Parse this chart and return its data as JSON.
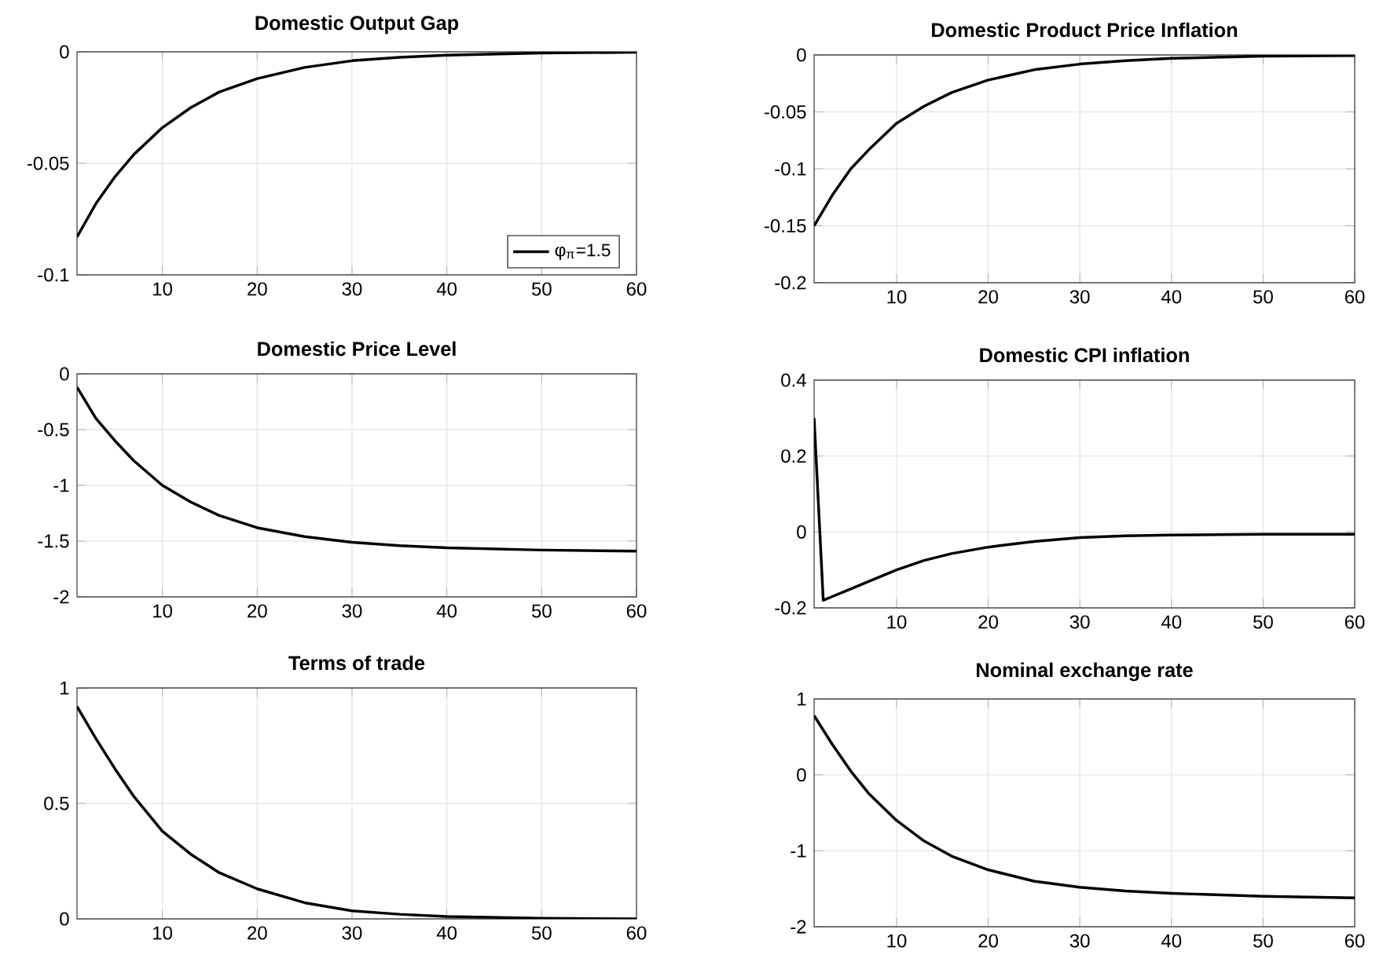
{
  "chart_data": [
    {
      "type": "line",
      "title": "Domestic Output Gap",
      "x": [
        1,
        3,
        5,
        7,
        10,
        13,
        16,
        20,
        25,
        30,
        35,
        40,
        50,
        60
      ],
      "xlim": [
        1,
        60
      ],
      "xticks": [
        10,
        20,
        30,
        40,
        50,
        60
      ],
      "ylim": [
        -0.1,
        0
      ],
      "yticks": [
        -0.1,
        -0.05,
        0
      ],
      "grid": true,
      "legend": "bottom right",
      "series": [
        {
          "name": "φ$_{π}$=1.5",
          "color": "#000000",
          "values": [
            -0.083,
            -0.068,
            -0.056,
            -0.046,
            -0.034,
            -0.025,
            -0.018,
            -0.012,
            -0.007,
            -0.004,
            -0.0025,
            -0.0015,
            -0.0005,
            -0.0002
          ]
        }
      ]
    },
    {
      "type": "line",
      "title": "Domestic Product Price Inflation",
      "x": [
        1,
        3,
        5,
        7,
        10,
        13,
        16,
        20,
        25,
        30,
        35,
        40,
        50,
        60
      ],
      "xlim": [
        1,
        60
      ],
      "xticks": [
        10,
        20,
        30,
        40,
        50,
        60
      ],
      "ylim": [
        -0.2,
        0
      ],
      "yticks": [
        -0.2,
        -0.15,
        -0.1,
        -0.05,
        0
      ],
      "grid": true,
      "series": [
        {
          "color": "#000000",
          "values": [
            -0.15,
            -0.123,
            -0.1,
            -0.083,
            -0.06,
            -0.045,
            -0.033,
            -0.022,
            -0.013,
            -0.008,
            -0.005,
            -0.003,
            -0.001,
            -0.0005
          ]
        }
      ]
    },
    {
      "type": "line",
      "title": "Domestic Price Level",
      "x": [
        1,
        3,
        5,
        7,
        10,
        13,
        16,
        20,
        25,
        30,
        35,
        40,
        50,
        60
      ],
      "xlim": [
        1,
        60
      ],
      "xticks": [
        10,
        20,
        30,
        40,
        50,
        60
      ],
      "ylim": [
        -2,
        0
      ],
      "yticks": [
        -2,
        -1.5,
        -1,
        -0.5,
        0
      ],
      "grid": true,
      "series": [
        {
          "color": "#000000",
          "values": [
            -0.12,
            -0.4,
            -0.6,
            -0.78,
            -1.0,
            -1.15,
            -1.27,
            -1.38,
            -1.46,
            -1.51,
            -1.54,
            -1.56,
            -1.58,
            -1.59
          ]
        }
      ]
    },
    {
      "type": "line",
      "title": "Domestic CPI inflation",
      "x": [
        1,
        2,
        3,
        5,
        7,
        10,
        13,
        16,
        20,
        25,
        30,
        35,
        40,
        50,
        60
      ],
      "xlim": [
        1,
        60
      ],
      "xticks": [
        10,
        20,
        30,
        40,
        50,
        60
      ],
      "ylim": [
        -0.2,
        0.4
      ],
      "yticks": [
        -0.2,
        0,
        0.2,
        0.4
      ],
      "grid": true,
      "series": [
        {
          "color": "#000000",
          "values": [
            0.3,
            -0.18,
            -0.17,
            -0.15,
            -0.13,
            -0.1,
            -0.075,
            -0.057,
            -0.04,
            -0.025,
            -0.015,
            -0.01,
            -0.008,
            -0.006,
            -0.006
          ]
        }
      ]
    },
    {
      "type": "line",
      "title": "Terms of trade",
      "x": [
        1,
        3,
        5,
        7,
        10,
        13,
        16,
        20,
        25,
        30,
        35,
        40,
        50,
        60
      ],
      "xlim": [
        1,
        60
      ],
      "xticks": [
        10,
        20,
        30,
        40,
        50,
        60
      ],
      "ylim": [
        0,
        1
      ],
      "yticks": [
        0,
        0.5,
        1
      ],
      "grid": true,
      "series": [
        {
          "color": "#000000",
          "values": [
            0.92,
            0.78,
            0.65,
            0.53,
            0.38,
            0.28,
            0.2,
            0.13,
            0.07,
            0.035,
            0.02,
            0.01,
            0.003,
            0
          ]
        }
      ]
    },
    {
      "type": "line",
      "title": "Nominal exchange rate",
      "x": [
        1,
        3,
        5,
        7,
        10,
        13,
        16,
        20,
        25,
        30,
        35,
        40,
        50,
        60
      ],
      "xlim": [
        1,
        60
      ],
      "xticks": [
        10,
        20,
        30,
        40,
        50,
        60
      ],
      "ylim": [
        -2,
        1
      ],
      "yticks": [
        -2,
        -1,
        0,
        1
      ],
      "grid": true,
      "series": [
        {
          "color": "#000000",
          "values": [
            0.78,
            0.4,
            0.05,
            -0.25,
            -0.6,
            -0.87,
            -1.07,
            -1.25,
            -1.4,
            -1.48,
            -1.53,
            -1.56,
            -1.6,
            -1.62
          ]
        }
      ]
    }
  ]
}
